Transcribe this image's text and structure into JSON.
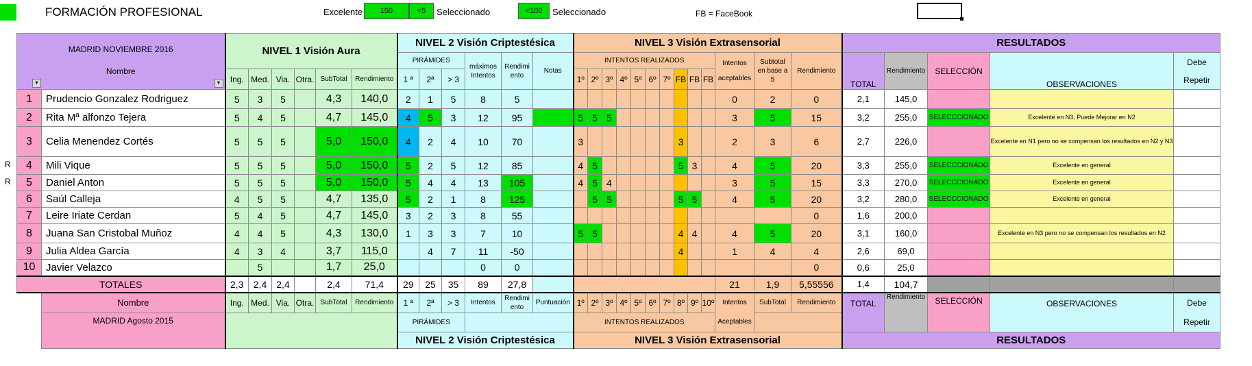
{
  "header": {
    "title": "FORMACIÓN PROFESIONAL",
    "excelente_label": "Excelente",
    "box1": "150",
    "box2": "<5",
    "sel1": "Seleccionado",
    "box3": "<100",
    "sel2": "Seleccionado",
    "fb_note": "FB = FaceBook"
  },
  "sections": {
    "n1": "NIVEL 1  Visión Aura",
    "n2": "NIVEL 2  Visión  Criptestésica",
    "n3": "NIVEL 3  Visión  Extrasensorial",
    "res": "RESULTADOS"
  },
  "top_headers": {
    "madrid": "MADRID NOVIEMBRE 2016",
    "nombre": "Nombre",
    "ing": "Ing.",
    "med": "Med.",
    "via": "Via.",
    "otra": "Otra.",
    "subtotal": "SubTotal",
    "rend": "Rendimiento",
    "piramides": "PIRÁMIDES",
    "p1": "1 ª",
    "p2": "2ª",
    "p3": "> 3",
    "max1": "máximos",
    "max2": "Intentos",
    "rendimi": "Rendimi",
    "ento": "ento",
    "notas": "Notas",
    "intentos_realizados": "INTENTOS REALIZADOS",
    "i1": "1º",
    "i2": "2º",
    "i3": "3º",
    "i4": "4º",
    "i5": "5º",
    "i6": "6º",
    "i7": "7º",
    "fb": "FB",
    "int_acept1": "Intentos",
    "int_acept2": "aceptables",
    "subt1": "Subtotal",
    "subt2": "en base a",
    "subt3": "5",
    "rend3": "Rendimiento",
    "total": "TOTAL",
    "rend_r": "Rendimiento",
    "seleccion": "SELECCIÓN",
    "observaciones": "OBSERVACIONES",
    "debe": "Debe",
    "repetir": "Repetir"
  },
  "rows": [
    {
      "n": "1",
      "name": "Prudencio Gonzalez Rodriguez",
      "ing": "5",
      "med": "3",
      "via": "5",
      "otra": "",
      "sub": "4,3",
      "rend": "140,0",
      "p1": "2",
      "p2": "1",
      "p3": "5",
      "max": "8",
      "rn": "5",
      "i1": "",
      "i2": "",
      "i3": "",
      "fb1": "",
      "fb2": "",
      "acc": "0",
      "st": "2",
      "r3": "0",
      "total": "2,1",
      "rr": "145,0",
      "sel": "",
      "obs": "",
      "mark": ""
    },
    {
      "n": "2",
      "name": "Rita Mª alfonzo Tejera",
      "ing": "5",
      "med": "4",
      "via": "5",
      "otra": "",
      "sub": "4,7",
      "rend": "145,0",
      "p1": "4",
      "p2": "5",
      "p3": "3",
      "max": "12",
      "rn": "95",
      "i1": "5",
      "i2": "5",
      "i3": "5",
      "fb1": "",
      "fb2": "",
      "acc": "3",
      "st": "5",
      "r3": "15",
      "total": "3,2",
      "rr": "255,0",
      "sel": "SELECCCIONADO",
      "obs": "Excelente en N3, Puede Mejorar en N2",
      "mark": ""
    },
    {
      "n": "3",
      "name": "Celia Menendez Cortés",
      "ing": "5",
      "med": "5",
      "via": "5",
      "otra": "",
      "sub": "5,0",
      "rend": "150,0",
      "p1": "4",
      "p2": "2",
      "p3": "4",
      "max": "10",
      "rn": "70",
      "i1": "3",
      "i2": "",
      "i3": "",
      "fb1": "3",
      "fb2": "",
      "acc": "2",
      "st": "3",
      "r3": "6",
      "total": "2,7",
      "rr": "226,0",
      "sel": "",
      "obs": "Excelente en N1 pero no se compensan los resultados en N2 y N3",
      "mark": ""
    },
    {
      "n": "4",
      "name": "Mili Vique",
      "ing": "5",
      "med": "5",
      "via": "5",
      "otra": "",
      "sub": "5,0",
      "rend": "150,0",
      "p1": "5",
      "p2": "2",
      "p3": "5",
      "max": "12",
      "rn": "85",
      "i1": "4",
      "i2": "5",
      "i3": "",
      "fb1": "5",
      "fb2": "3",
      "acc": "4",
      "st": "5",
      "r3": "20",
      "total": "3,3",
      "rr": "255,0",
      "sel": "SELECCCIONADO",
      "obs": "Excelente en general",
      "mark": "R"
    },
    {
      "n": "5",
      "name": "Daniel Anton",
      "ing": "5",
      "med": "5",
      "via": "5",
      "otra": "",
      "sub": "5,0",
      "rend": "150,0",
      "p1": "5",
      "p2": "4",
      "p3": "4",
      "max": "13",
      "rn": "105",
      "i1": "4",
      "i2": "5",
      "i3": "4",
      "fb1": "",
      "fb2": "",
      "acc": "3",
      "st": "5",
      "r3": "15",
      "total": "3,3",
      "rr": "270,0",
      "sel": "SELECCCIONADO",
      "obs": "Excelente en general",
      "mark": "R"
    },
    {
      "n": "6",
      "name": "Saúl Calleja",
      "ing": "4",
      "med": "5",
      "via": "5",
      "otra": "",
      "sub": "4,7",
      "rend": "135,0",
      "p1": "5",
      "p2": "2",
      "p3": "1",
      "max": "8",
      "rn": "125",
      "i1": "",
      "i2": "5",
      "i3": "5",
      "fb1": "5",
      "fb2": "5",
      "acc": "4",
      "st": "5",
      "r3": "20",
      "total": "3,2",
      "rr": "280,0",
      "sel": "SELECCCIONADO",
      "obs": "Excelente en general",
      "mark": ""
    },
    {
      "n": "7",
      "name": "Leire Iriate Cerdan",
      "ing": "5",
      "med": "4",
      "via": "5",
      "otra": "",
      "sub": "4,7",
      "rend": "145,0",
      "p1": "3",
      "p2": "2",
      "p3": "3",
      "max": "8",
      "rn": "55",
      "i1": "",
      "i2": "",
      "i3": "",
      "fb1": "",
      "fb2": "",
      "acc": "",
      "st": "",
      "r3": "0",
      "total": "1,6",
      "rr": "200,0",
      "sel": "",
      "obs": "",
      "mark": ""
    },
    {
      "n": "8",
      "name": "Juana San Cristobal Muñoz",
      "ing": "4",
      "med": "4",
      "via": "5",
      "otra": "",
      "sub": "4,3",
      "rend": "130,0",
      "p1": "1",
      "p2": "3",
      "p3": "3",
      "max": "7",
      "rn": "10",
      "i1": "5",
      "i2": "5",
      "i3": "",
      "fb1": "4",
      "fb2": "4",
      "acc": "4",
      "st": "5",
      "r3": "20",
      "total": "3,1",
      "rr": "160,0",
      "sel": "",
      "obs": "Excelente en N3 pero no se compensan los resultados en N2",
      "mark": ""
    },
    {
      "n": "9",
      "name": "Julia Aldea García",
      "ing": "4",
      "med": "3",
      "via": "4",
      "otra": "",
      "sub": "3,7",
      "rend": "115,0",
      "p1": "",
      "p2": "4",
      "p3": "7",
      "max": "11",
      "rn": "-50",
      "i1": "",
      "i2": "",
      "i3": "",
      "fb1": "4",
      "fb2": "",
      "acc": "1",
      "st": "4",
      "r3": "4",
      "total": "2,6",
      "rr": "69,0",
      "sel": "",
      "obs": "",
      "mark": ""
    },
    {
      "n": "10",
      "name": "Javier Velazco",
      "ing": "",
      "med": "5",
      "via": "",
      "otra": "",
      "sub": "1,7",
      "rend": "25,0",
      "p1": "",
      "p2": "",
      "p3": "",
      "max": "0",
      "rn": "0",
      "i1": "",
      "i2": "",
      "i3": "",
      "fb1": "",
      "fb2": "",
      "acc": "",
      "st": "",
      "r3": "0",
      "total": "0,6",
      "rr": "25,0",
      "sel": "",
      "obs": "",
      "mark": ""
    }
  ],
  "totals": {
    "label": "TOTALES",
    "ing": "2,3",
    "med": "2,4",
    "via": "2,4",
    "sub": "2,4",
    "rend": "71,4",
    "p1": "29",
    "p2": "25",
    "p3": "35",
    "max": "89",
    "rn": "27,8",
    "acc": "21",
    "st": "1,9",
    "r3": "5,55556",
    "total": "1,4",
    "rr": "104,7"
  },
  "bottom": {
    "nombre": "Nombre",
    "madrid": "MADRID Agosto 2015",
    "ing": "Ing.",
    "med": "Med.",
    "via": "Via.",
    "otra": "Otra.",
    "subtotal": "SubTotal",
    "rend": "Rendimiento",
    "p1": "1 ª",
    "p2": "2ª",
    "p3": "> 3",
    "intentos": "Intentos",
    "rendimi": "Rendimi",
    "ento": "ento",
    "puntuacion": "Puntuación",
    "i": [
      "1º",
      "2º",
      "3º",
      "4º",
      "5º",
      "6º",
      "7º",
      "8º",
      "9º",
      "10º"
    ],
    "int1": "Intentos",
    "acept": "Aceptables",
    "subtotal2": "SubTotal",
    "rend3": "Rendimiento",
    "total": "TOTAL",
    "rend_r": "Rendimiento",
    "seleccion": "SELECCIÓN",
    "observaciones": "OBSERVACIONES",
    "debe": "Debe",
    "repetir": "Repetir",
    "piramides": "PIRÁMIDES",
    "intentos_realizados": "INTENTOS REALIZADOS"
  }
}
